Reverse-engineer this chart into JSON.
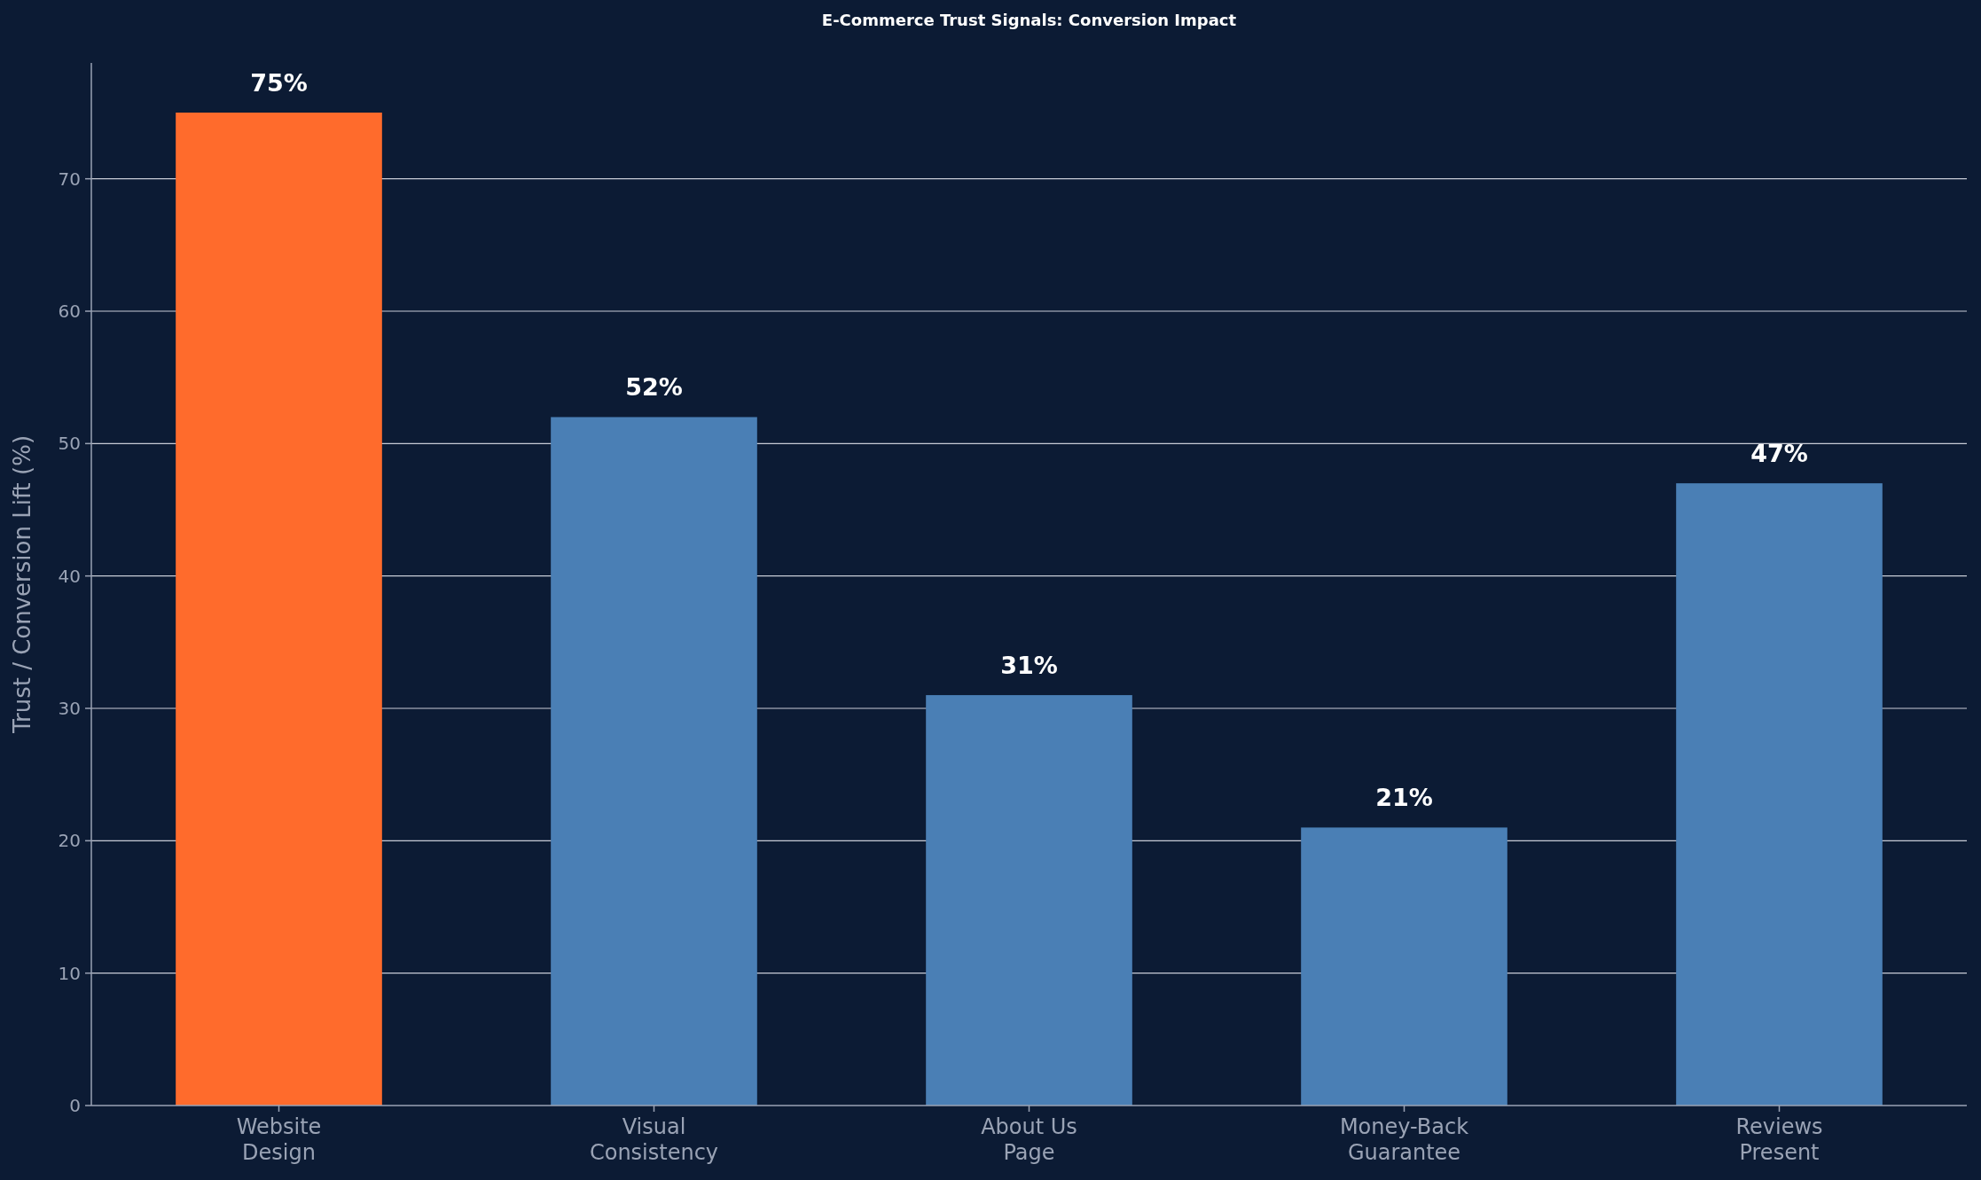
{
  "chart_data": {
    "type": "bar",
    "title": "E-Commerce Trust Signals: Conversion Impact",
    "ylabel": "Trust / Conversion Lift (%)",
    "categories": [
      "Website\nDesign",
      "Visual\nConsistency",
      "About Us\nPage",
      "Money-Back\nGuarantee",
      "Reviews\nPresent"
    ],
    "values": [
      75,
      52,
      31,
      21,
      47
    ],
    "colors": [
      "#ff6b2c",
      "#4a7fb5",
      "#4a7fb5",
      "#4a7fb5",
      "#4a7fb5"
    ],
    "value_labels": [
      "75%",
      "52%",
      "31%",
      "21%",
      "47%"
    ],
    "ylim": [
      0,
      78.75
    ],
    "yticks": [
      0,
      10,
      20,
      30,
      40,
      50,
      60,
      70
    ],
    "grid": "y"
  }
}
